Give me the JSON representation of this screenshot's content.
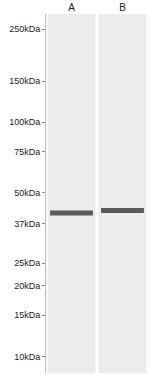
{
  "chart_data": {
    "type": "western_blot",
    "categories": [
      "A",
      "B"
    ],
    "values": [
      41,
      42
    ],
    "log": "y",
    "ylim": [
      8.5,
      290
    ],
    "yticks": [
      {
        "value": 250,
        "label": "250kDa"
      },
      {
        "value": 150,
        "label": "150kDa"
      },
      {
        "value": 100,
        "label": "100kDa"
      },
      {
        "value": 75,
        "label": "75kDa"
      },
      {
        "value": 50,
        "label": "50kDa"
      },
      {
        "value": 37,
        "label": "37kDa"
      },
      {
        "value": 25,
        "label": "25kDa"
      },
      {
        "value": 20,
        "label": "20kDa"
      },
      {
        "value": 15,
        "label": "15kDa"
      },
      {
        "value": 10,
        "label": "10kDa"
      }
    ]
  }
}
